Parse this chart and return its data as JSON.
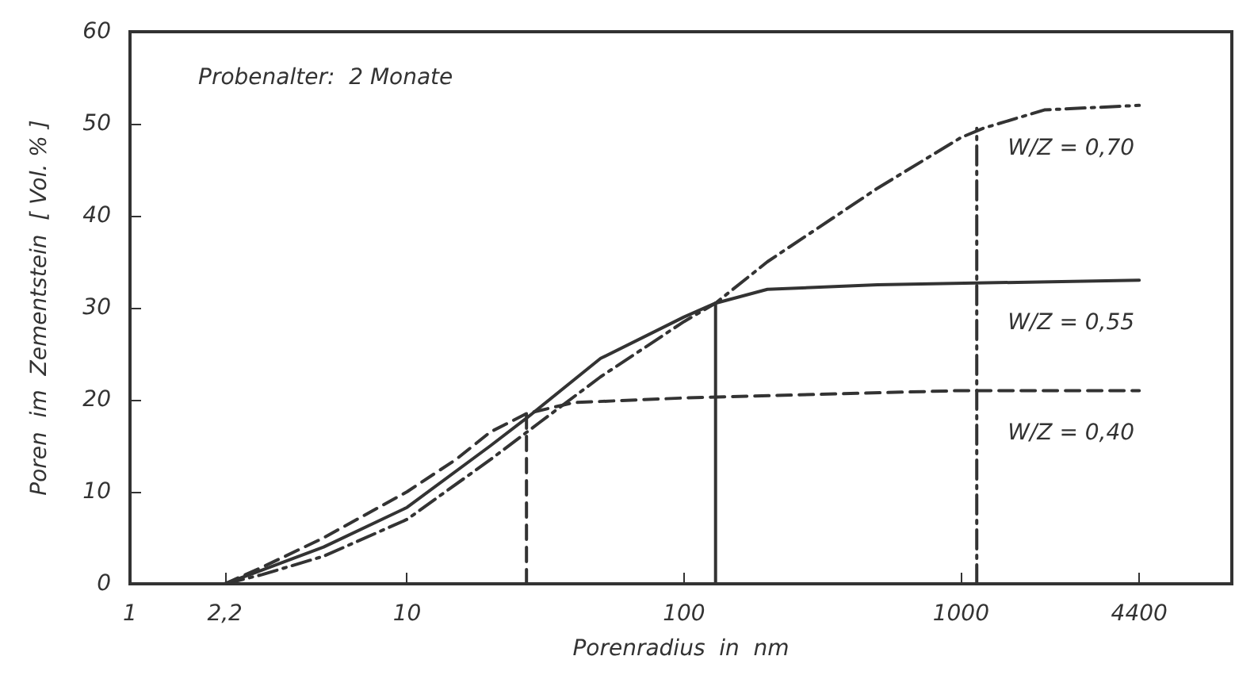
{
  "chart_data": {
    "type": "line",
    "xlabel": "Porenradius  in  nm",
    "ylabel": "Poren  im  Zementstein  [ Vol. % ]",
    "annotations": [
      "Probenalter:  2 Monate"
    ],
    "log": "x",
    "xlim": [
      1,
      9500
    ],
    "xticks": [
      1,
      {
        "value": 2.2,
        "label": "2,2"
      },
      10,
      100,
      1000,
      4400
    ],
    "ylim": [
      0,
      60
    ],
    "yticks": [
      0,
      10,
      20,
      30,
      40,
      50,
      60
    ],
    "grid": false,
    "legend": false,
    "marker": "none",
    "series": [
      {
        "name": "W/Z = 0,70",
        "color": "#333333",
        "line_style": "dashdot",
        "x": [
          2.2,
          3,
          5,
          10,
          20,
          30,
          50,
          100,
          130,
          200,
          500,
          1000,
          1200,
          2000,
          4400
        ],
        "values": [
          0,
          1,
          3,
          7,
          13.5,
          17.5,
          22.5,
          28.5,
          30.5,
          35,
          43,
          48.5,
          49.5,
          51.5,
          52
        ]
      },
      {
        "name": "W/Z = 0,55",
        "color": "#333333",
        "line_style": "solid",
        "x": [
          2.2,
          3,
          5,
          10,
          20,
          27,
          50,
          100,
          130,
          200,
          500,
          4400
        ],
        "values": [
          0,
          1.5,
          4,
          8.3,
          15,
          18,
          24.5,
          29,
          30.5,
          32,
          32.5,
          33
        ]
      },
      {
        "name": "W/Z = 0,40",
        "color": "#333333",
        "line_style": "dashed",
        "x": [
          2.2,
          3,
          5,
          10,
          15,
          20,
          27,
          40,
          100,
          1000,
          4400
        ],
        "values": [
          0,
          1.8,
          5,
          10,
          13.5,
          16.5,
          18.5,
          19.7,
          20.2,
          21,
          21
        ]
      },
      {
        "color": "#333333",
        "line_style": "dashdot",
        "x": [
          1140,
          1140
        ],
        "values": [
          0,
          49.5
        ]
      },
      {
        "color": "#333333",
        "line_style": "solid",
        "x": [
          130,
          130
        ],
        "values": [
          0,
          30.5
        ]
      },
      {
        "color": "#333333",
        "line_style": "dashed",
        "x": [
          27,
          27
        ],
        "values": [
          0,
          18.5
        ]
      }
    ]
  }
}
